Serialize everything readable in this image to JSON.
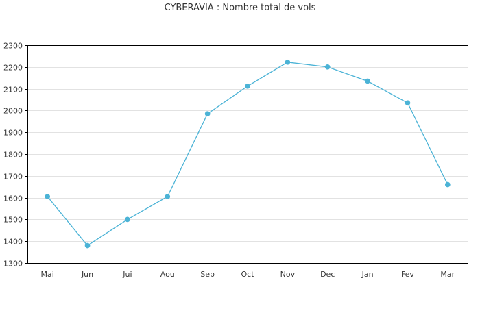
{
  "chart_data": {
    "type": "line",
    "title": "CYBERAVIA : Nombre total de vols",
    "xlabel": "",
    "ylabel": "",
    "categories": [
      "Mai",
      "Jun",
      "Jui",
      "Aou",
      "Sep",
      "Oct",
      "Nov",
      "Dec",
      "Jan",
      "Fev",
      "Mar"
    ],
    "series": [
      {
        "values": [
          1605,
          1380,
          1500,
          1605,
          1985,
          2112,
          2222,
          2200,
          2135,
          2035,
          1660
        ]
      }
    ],
    "ylim": [
      1300,
      2300
    ],
    "yticks": [
      1300,
      1400,
      1500,
      1600,
      1700,
      1800,
      1900,
      2000,
      2100,
      2200,
      2300
    ],
    "grid": true,
    "legend": "none",
    "colors": {
      "line": "#4bb3d6",
      "marker": "#4bb3d6",
      "grid": "#e2e2e2",
      "axis": "#000000",
      "text": "#333333"
    }
  }
}
